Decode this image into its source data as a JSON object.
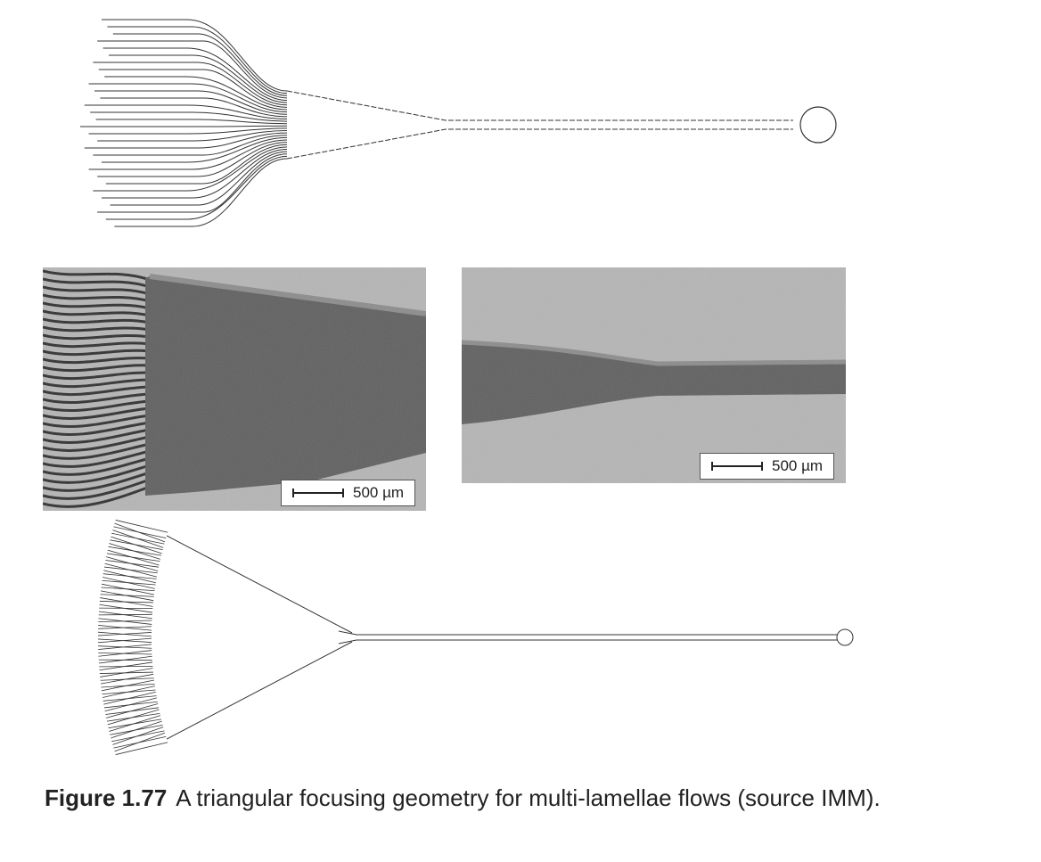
{
  "figure": {
    "label": "Figure 1.77",
    "caption": "A triangular focusing geometry for multi-lamellae flows (source IMM).",
    "scale_bar_left": "500 µm",
    "scale_bar_right": "500 µm"
  },
  "colors": {
    "line": "#333333",
    "sem_background": "#b5b5b5",
    "sem_channel": "#5c5c5c"
  }
}
